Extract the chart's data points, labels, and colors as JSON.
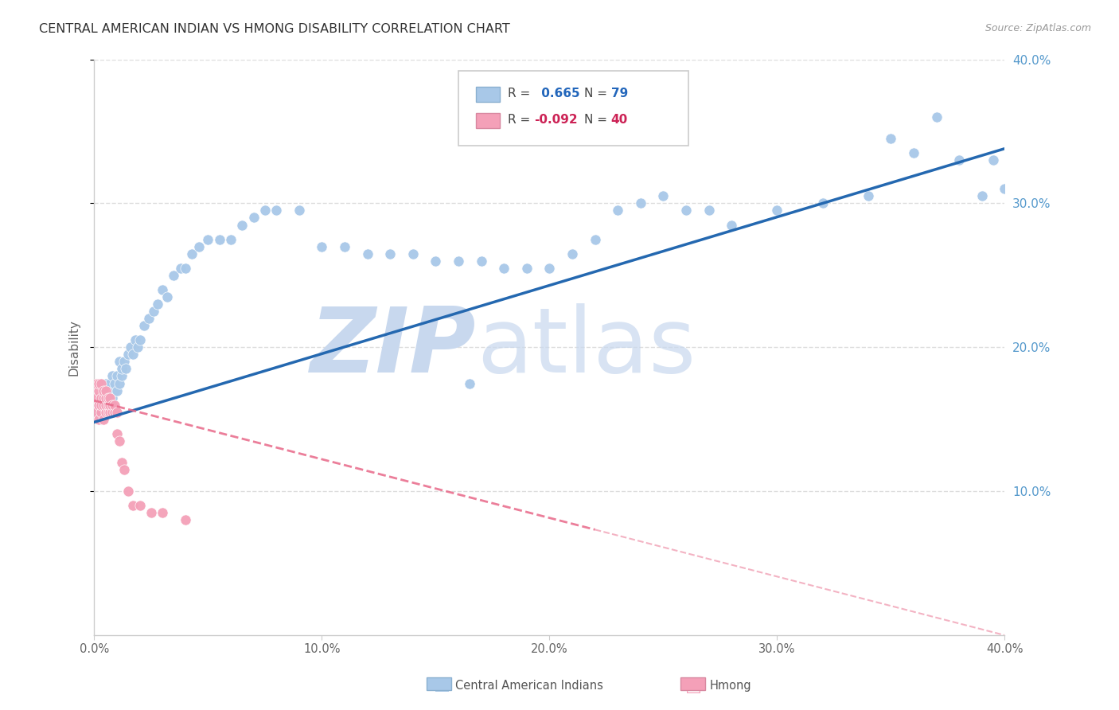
{
  "title": "CENTRAL AMERICAN INDIAN VS HMONG DISABILITY CORRELATION CHART",
  "source": "Source: ZipAtlas.com",
  "ylabel": "Disability",
  "xlim": [
    0.0,
    0.4
  ],
  "ylim": [
    0.0,
    0.4
  ],
  "ytick_labels": [
    "10.0%",
    "20.0%",
    "30.0%",
    "40.0%"
  ],
  "ytick_values": [
    0.1,
    0.2,
    0.3,
    0.4
  ],
  "xtick_labels": [
    "0.0%",
    "10.0%",
    "20.0%",
    "30.0%",
    "40.0%"
  ],
  "xtick_values": [
    0.0,
    0.1,
    0.2,
    0.3,
    0.4
  ],
  "legend_blue_r": "0.665",
  "legend_blue_n": "79",
  "legend_pink_r": "-0.092",
  "legend_pink_n": "40",
  "blue_color": "#a8c8e8",
  "pink_color": "#f4a0b8",
  "blue_line_color": "#2468b0",
  "pink_line_color": "#e86888",
  "blue_scatter_x": [
    0.001,
    0.002,
    0.003,
    0.003,
    0.004,
    0.004,
    0.005,
    0.005,
    0.006,
    0.006,
    0.007,
    0.007,
    0.008,
    0.008,
    0.009,
    0.009,
    0.01,
    0.01,
    0.011,
    0.011,
    0.012,
    0.012,
    0.013,
    0.014,
    0.015,
    0.016,
    0.017,
    0.018,
    0.019,
    0.02,
    0.022,
    0.024,
    0.026,
    0.028,
    0.03,
    0.032,
    0.035,
    0.038,
    0.04,
    0.043,
    0.046,
    0.05,
    0.055,
    0.06,
    0.065,
    0.07,
    0.075,
    0.08,
    0.09,
    0.1,
    0.11,
    0.12,
    0.13,
    0.14,
    0.15,
    0.16,
    0.17,
    0.18,
    0.19,
    0.2,
    0.21,
    0.22,
    0.23,
    0.24,
    0.25,
    0.26,
    0.27,
    0.28,
    0.3,
    0.32,
    0.34,
    0.35,
    0.36,
    0.37,
    0.38,
    0.39,
    0.395,
    0.4,
    0.165
  ],
  "blue_scatter_y": [
    0.155,
    0.16,
    0.15,
    0.165,
    0.155,
    0.17,
    0.155,
    0.175,
    0.16,
    0.165,
    0.165,
    0.175,
    0.165,
    0.18,
    0.17,
    0.175,
    0.17,
    0.18,
    0.175,
    0.19,
    0.18,
    0.185,
    0.19,
    0.185,
    0.195,
    0.2,
    0.195,
    0.205,
    0.2,
    0.205,
    0.215,
    0.22,
    0.225,
    0.23,
    0.24,
    0.235,
    0.25,
    0.255,
    0.255,
    0.265,
    0.27,
    0.275,
    0.275,
    0.275,
    0.285,
    0.29,
    0.295,
    0.295,
    0.295,
    0.27,
    0.27,
    0.265,
    0.265,
    0.265,
    0.26,
    0.26,
    0.26,
    0.255,
    0.255,
    0.255,
    0.265,
    0.275,
    0.295,
    0.3,
    0.305,
    0.295,
    0.295,
    0.285,
    0.295,
    0.3,
    0.305,
    0.345,
    0.335,
    0.36,
    0.33,
    0.305,
    0.33,
    0.31,
    0.175
  ],
  "pink_scatter_x": [
    0.001,
    0.001,
    0.001,
    0.002,
    0.002,
    0.002,
    0.002,
    0.003,
    0.003,
    0.003,
    0.003,
    0.004,
    0.004,
    0.004,
    0.004,
    0.005,
    0.005,
    0.005,
    0.005,
    0.006,
    0.006,
    0.006,
    0.007,
    0.007,
    0.007,
    0.008,
    0.008,
    0.009,
    0.009,
    0.01,
    0.01,
    0.011,
    0.012,
    0.013,
    0.015,
    0.017,
    0.02,
    0.025,
    0.03,
    0.04
  ],
  "pink_scatter_y": [
    0.155,
    0.165,
    0.175,
    0.15,
    0.16,
    0.17,
    0.175,
    0.155,
    0.16,
    0.165,
    0.175,
    0.15,
    0.16,
    0.165,
    0.17,
    0.155,
    0.16,
    0.165,
    0.17,
    0.155,
    0.16,
    0.165,
    0.155,
    0.16,
    0.165,
    0.155,
    0.16,
    0.155,
    0.16,
    0.155,
    0.14,
    0.135,
    0.12,
    0.115,
    0.1,
    0.09,
    0.09,
    0.085,
    0.085,
    0.08
  ],
  "blue_line_x": [
    0.0,
    0.4
  ],
  "blue_line_y": [
    0.148,
    0.338
  ],
  "pink_line_x": [
    0.0,
    0.4
  ],
  "pink_line_y": [
    0.163,
    0.0
  ],
  "watermark_zip_color": "#c8d8ee",
  "watermark_atlas_color": "#c8d8ee",
  "background_color": "#ffffff",
  "grid_color": "#dddddd",
  "spine_color": "#cccccc",
  "title_color": "#333333",
  "source_color": "#999999",
  "ylabel_color": "#666666",
  "tick_color": "#666666",
  "right_tick_color": "#5599cc"
}
